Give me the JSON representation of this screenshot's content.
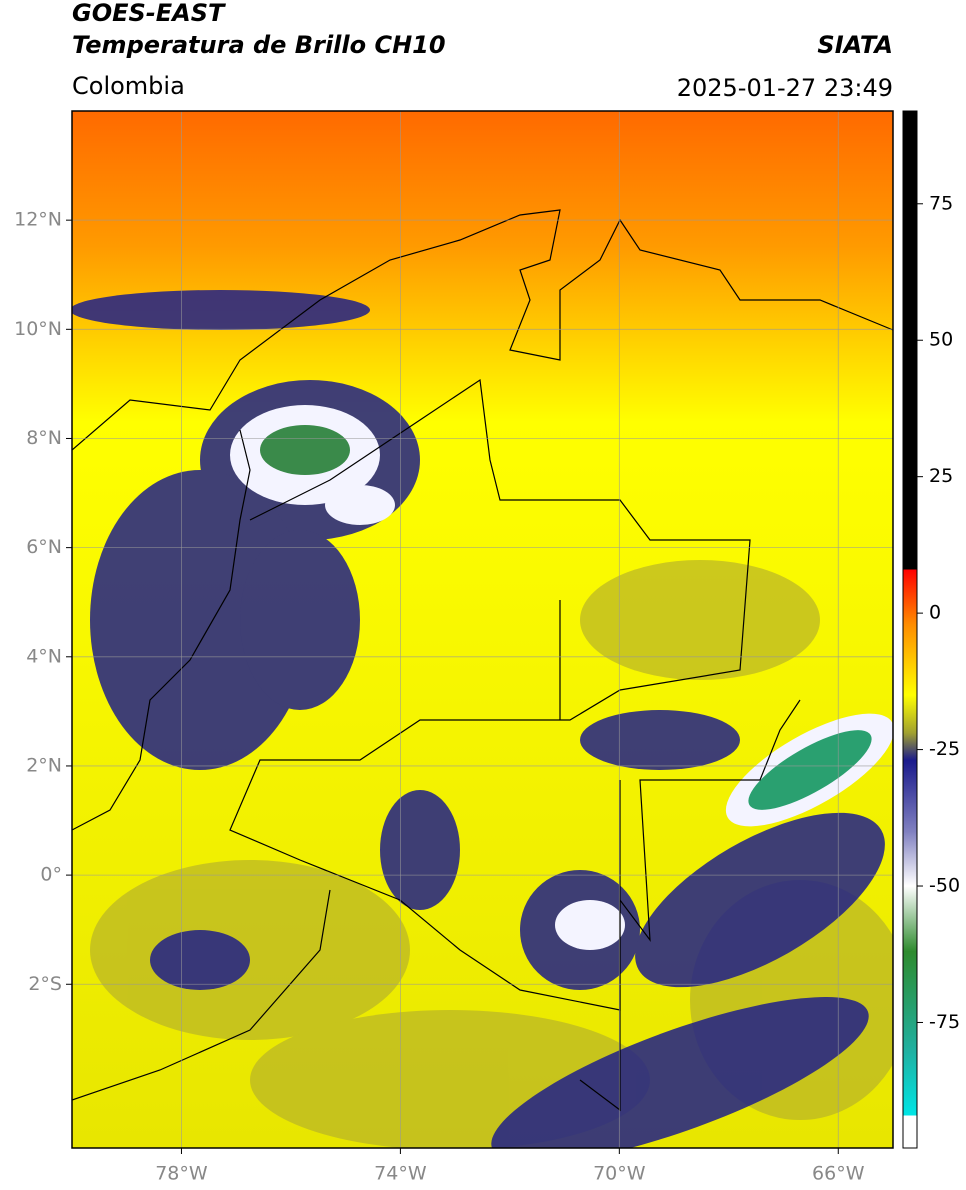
{
  "header": {
    "title": "GOES-EAST",
    "subtitle": "Temperatura de Brillo CH10",
    "brand": "SIATA",
    "region": "Colombia",
    "timestamp": "2025-01-27 23:49"
  },
  "map": {
    "xlim": [
      -80,
      -65
    ],
    "ylim": [
      -5,
      14
    ],
    "xticks": [
      {
        "value": -78,
        "label": "78°W"
      },
      {
        "value": -74,
        "label": "74°W"
      },
      {
        "value": -70,
        "label": "70°W"
      },
      {
        "value": -66,
        "label": "66°W"
      }
    ],
    "yticks": [
      {
        "value": 12,
        "label": "12°N"
      },
      {
        "value": 10,
        "label": "10°N"
      },
      {
        "value": 8,
        "label": "8°N"
      },
      {
        "value": 6,
        "label": "6°N"
      },
      {
        "value": 4,
        "label": "4°N"
      },
      {
        "value": 2,
        "label": "2°N"
      },
      {
        "value": 0,
        "label": "0°"
      },
      {
        "value": -2,
        "label": "2°S"
      }
    ],
    "grid": true,
    "grid_color": "#999999"
  },
  "colorbar": {
    "lim": [
      -98,
      92
    ],
    "ticks": [
      75,
      50,
      25,
      0,
      -25,
      -50,
      -75
    ],
    "stops": [
      [
        92,
        "#000000"
      ],
      [
        8,
        "#000000"
      ],
      [
        8,
        "#ff0000"
      ],
      [
        -2,
        "#ff8c00"
      ],
      [
        -15,
        "#ffff00"
      ],
      [
        -22,
        "#a0a030"
      ],
      [
        -27,
        "#1a1a8c"
      ],
      [
        -40,
        "#8080c0"
      ],
      [
        -50,
        "#ffffff"
      ],
      [
        -62,
        "#2e8b2e"
      ],
      [
        -80,
        "#20b0a0"
      ],
      [
        -92,
        "#00e5e5"
      ],
      [
        -92,
        "#ffffff"
      ],
      [
        -98,
        "#ffffff"
      ]
    ]
  }
}
